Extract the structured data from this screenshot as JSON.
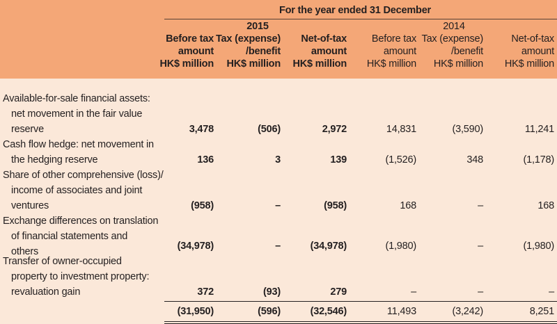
{
  "table": {
    "period_caption": "For the year ended 31 December",
    "years": [
      "2015",
      "2014"
    ],
    "columns": [
      {
        "line1": "Before tax",
        "line2": "amount",
        "line3": "HK$ million"
      },
      {
        "line1": "Tax (expense)",
        "line2": "/benefit",
        "line3": "HK$ million"
      },
      {
        "line1": "Net-of-tax",
        "line2": "amount",
        "line3": "HK$ million"
      },
      {
        "line1": "Before tax",
        "line2": "amount",
        "line3": "HK$ million"
      },
      {
        "line1": "Tax (expense)",
        "line2": "/benefit",
        "line3": "HK$ million"
      },
      {
        "line1": "Net-of-tax",
        "line2": "amount",
        "line3": "HK$ million"
      }
    ],
    "rows": [
      {
        "label_lines": [
          "Available-for-sale financial assets:",
          "net movement in the fair value",
          "reserve"
        ],
        "values": [
          "3,478",
          "(506)",
          "2,972",
          "14,831",
          "(3,590)",
          "11,241"
        ]
      },
      {
        "label_lines": [
          "Cash flow hedge: net movement in",
          "the hedging reserve"
        ],
        "values": [
          "136",
          "3",
          "139",
          "(1,526)",
          "348",
          "(1,178)"
        ]
      },
      {
        "label_lines": [
          "Share of other comprehensive (loss)/",
          "income of associates and joint",
          "ventures"
        ],
        "values": [
          "(958)",
          "–",
          "(958)",
          "168",
          "–",
          "168"
        ]
      },
      {
        "label_lines": [
          "Exchange differences on translation",
          "of financial statements and",
          "others"
        ],
        "values": [
          "(34,978)",
          "–",
          "(34,978)",
          "(1,980)",
          "–",
          "(1,980)"
        ]
      },
      {
        "label_lines": [
          "Transfer of owner-occupied",
          "property to investment property:",
          "revaluation gain"
        ],
        "values": [
          "372",
          "(93)",
          "279",
          "–",
          "–",
          "–"
        ]
      }
    ],
    "total": {
      "values": [
        "(31,950)",
        "(596)",
        "(32,546)",
        "11,493",
        "(3,242)",
        "8,251"
      ]
    }
  },
  "colors": {
    "header_background": "#f4a777",
    "body_background": "#fbe8d9",
    "text": "#231f20"
  }
}
